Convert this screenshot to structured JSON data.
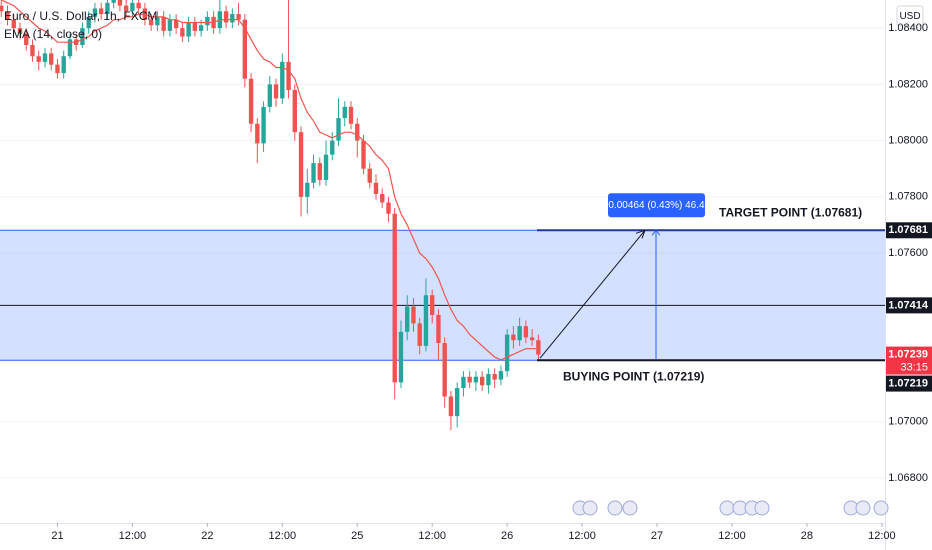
{
  "chart_data": {
    "type": "candlestick",
    "title": "Euro / U.S. Dollar, 1h, FXCM",
    "indicator": "EMA (14, close, 0)",
    "currency": "USD",
    "up_color": "#26a69a",
    "down_color": "#ef5350",
    "ema_color": "#f0554e",
    "x": [
      -9,
      -8,
      -7,
      -6,
      -5,
      -4,
      -3,
      -2,
      -1,
      0,
      1,
      2,
      3,
      4,
      5,
      6,
      7,
      8,
      9,
      10,
      11,
      12,
      13,
      14,
      15,
      16,
      17,
      18,
      19,
      20,
      21,
      22,
      23,
      24,
      25,
      26,
      27,
      28,
      29,
      30,
      31,
      32,
      33,
      34,
      35,
      36,
      37,
      38,
      39,
      40,
      41,
      42,
      43,
      44,
      45,
      46,
      47,
      48,
      49,
      50,
      51,
      52,
      53,
      54,
      55,
      56,
      57,
      58,
      59,
      60,
      61,
      62,
      63,
      64,
      65,
      66,
      67,
      68,
      69,
      70,
      71,
      72,
      73,
      74,
      75,
      76,
      77
    ],
    "open": [
      1.0848,
      1.0846,
      1.0843,
      1.084,
      1.0838,
      1.0834,
      1.083,
      1.0828,
      1.0831,
      1.0827,
      1.0824,
      1.083,
      1.0836,
      1.0834,
      1.084,
      1.0844,
      1.0847,
      1.0845,
      1.0849,
      1.085,
      1.0848,
      1.0846,
      1.0849,
      1.0847,
      1.0843,
      1.0841,
      1.0844,
      1.0839,
      1.0843,
      1.084,
      1.0837,
      1.0842,
      1.0839,
      1.0841,
      1.0844,
      1.084,
      1.0846,
      1.0842,
      1.0845,
      1.0843,
      1.0822,
      1.0806,
      1.0799,
      1.0812,
      1.082,
      1.0815,
      1.0828,
      1.0818,
      1.0803,
      1.078,
      1.0785,
      1.0792,
      1.0786,
      1.0795,
      1.08,
      1.0808,
      1.0812,
      1.0806,
      1.08,
      1.079,
      1.0785,
      1.0781,
      1.0778,
      1.0774,
      1.0714,
      1.0732,
      1.0741,
      1.0735,
      1.0727,
      1.0745,
      1.0738,
      1.0728,
      1.0709,
      1.0702,
      1.0712,
      1.0716,
      1.0714,
      1.0716,
      1.0713,
      1.0717,
      1.0715,
      1.0718,
      1.0731,
      1.0729,
      1.0734,
      1.073,
      1.0729
    ],
    "high": [
      1.085,
      1.0848,
      1.0845,
      1.0842,
      1.084,
      1.0836,
      1.0832,
      1.0833,
      1.0833,
      1.0829,
      1.0832,
      1.0838,
      1.0838,
      1.0842,
      1.0846,
      1.0849,
      1.0849,
      1.0851,
      1.0853,
      1.0852,
      1.085,
      1.0851,
      1.0851,
      1.0849,
      1.0845,
      1.0846,
      1.0846,
      1.0845,
      1.0845,
      1.0842,
      1.0844,
      1.0844,
      1.0843,
      1.0846,
      1.0846,
      1.085,
      1.0848,
      1.0847,
      1.0849,
      1.0845,
      1.0824,
      1.0808,
      1.0814,
      1.0823,
      1.0822,
      1.0831,
      1.086,
      1.082,
      1.0805,
      1.079,
      1.0795,
      1.0794,
      1.08,
      1.0803,
      1.0815,
      1.0814,
      1.0814,
      1.0808,
      1.0802,
      1.0792,
      1.0788,
      1.0783,
      1.078,
      1.0776,
      1.0736,
      1.0745,
      1.0744,
      1.0737,
      1.0751,
      1.0747,
      1.074,
      1.073,
      1.0711,
      1.0714,
      1.0718,
      1.0718,
      1.0718,
      1.0718,
      1.0719,
      1.0719,
      1.072,
      1.0733,
      1.0734,
      1.0737,
      1.0736,
      1.0733,
      1.0731
    ],
    "low": [
      1.0844,
      1.0841,
      1.0838,
      1.0836,
      1.0832,
      1.0828,
      1.0825,
      1.0826,
      1.0825,
      1.0822,
      1.0822,
      1.0829,
      1.0832,
      1.0833,
      1.0838,
      1.0842,
      1.0843,
      1.0843,
      1.0847,
      1.0846,
      1.0844,
      1.0844,
      1.0845,
      1.0841,
      1.0839,
      1.0839,
      1.0837,
      1.0837,
      1.0838,
      1.0835,
      1.0835,
      1.0837,
      1.0837,
      1.0839,
      1.0838,
      1.0838,
      1.084,
      1.084,
      1.0841,
      1.0819,
      1.0803,
      1.0792,
      1.0796,
      1.081,
      1.0812,
      1.0813,
      1.0815,
      1.08,
      1.0773,
      1.0774,
      1.0783,
      1.0784,
      1.0784,
      1.0793,
      1.0798,
      1.0805,
      1.0804,
      1.0794,
      1.0788,
      1.0783,
      1.0779,
      1.0776,
      1.0771,
      1.0708,
      1.0712,
      1.0729,
      1.0732,
      1.0724,
      1.0725,
      1.0735,
      1.0722,
      1.0705,
      1.0697,
      1.0698,
      1.0709,
      1.0712,
      1.0711,
      1.0711,
      1.071,
      1.0712,
      1.0713,
      1.0716,
      1.0726,
      1.0727,
      1.0728,
      1.0727,
      1.0722
    ],
    "close": [
      1.0846,
      1.0843,
      1.084,
      1.0838,
      1.0834,
      1.083,
      1.0828,
      1.0831,
      1.0827,
      1.0824,
      1.083,
      1.0836,
      1.0834,
      1.084,
      1.0844,
      1.0847,
      1.0845,
      1.0849,
      1.085,
      1.0848,
      1.0846,
      1.0849,
      1.0847,
      1.0843,
      1.0841,
      1.0844,
      1.0839,
      1.0843,
      1.084,
      1.0837,
      1.0842,
      1.0839,
      1.0841,
      1.0844,
      1.084,
      1.0846,
      1.0842,
      1.0845,
      1.0843,
      1.0822,
      1.0806,
      1.0799,
      1.0812,
      1.082,
      1.0815,
      1.0828,
      1.0818,
      1.0803,
      1.078,
      1.0785,
      1.0792,
      1.0786,
      1.0795,
      1.08,
      1.0808,
      1.0812,
      1.0806,
      1.08,
      1.079,
      1.0785,
      1.0781,
      1.0778,
      1.0774,
      1.0714,
      1.0732,
      1.0741,
      1.0735,
      1.0727,
      1.0745,
      1.0738,
      1.0728,
      1.0709,
      1.0702,
      1.0712,
      1.0716,
      1.0714,
      1.0716,
      1.0713,
      1.0717,
      1.0715,
      1.0718,
      1.0731,
      1.0729,
      1.0734,
      1.073,
      1.0729,
      1.07239
    ],
    "ema": [
      1.085,
      1.0849,
      1.0848,
      1.0846,
      1.0844,
      1.0842,
      1.084,
      1.0839,
      1.0837,
      1.0835,
      1.0835,
      1.0835,
      1.0835,
      1.0836,
      1.0837,
      1.0839,
      1.084,
      1.0841,
      1.0843,
      1.0843,
      1.0844,
      1.0844,
      1.0845,
      1.0845,
      1.0844,
      1.0844,
      1.0844,
      1.0843,
      1.0843,
      1.0842,
      1.0842,
      1.0842,
      1.0842,
      1.0842,
      1.0842,
      1.0843,
      1.0843,
      1.0843,
      1.0843,
      1.084,
      1.0836,
      1.0832,
      1.0829,
      1.0828,
      1.0826,
      1.0826,
      1.0825,
      1.0822,
      1.0815,
      1.081,
      1.0807,
      1.0803,
      1.0802,
      1.0801,
      1.0802,
      1.0803,
      1.0803,
      1.0802,
      1.08,
      1.0798,
      1.0795,
      1.0793,
      1.079,
      1.078,
      1.0774,
      1.077,
      1.0765,
      1.076,
      1.0758,
      1.0755,
      1.0751,
      1.0745,
      1.074,
      1.0736,
      1.0734,
      1.0731,
      1.0729,
      1.0727,
      1.0725,
      1.0723,
      1.0722,
      1.0723,
      1.0724,
      1.0725,
      1.0726,
      1.0726,
      1.0726
    ],
    "xlim": [
      -9.2,
      132.5
    ],
    "ylim": [
      1.0664,
      1.085
    ],
    "xticks": [
      {
        "value": 0,
        "label": "21"
      },
      {
        "value": 12,
        "label": "12:00"
      },
      {
        "value": 24,
        "label": "22"
      },
      {
        "value": 36,
        "label": "12:00"
      },
      {
        "value": 48,
        "label": "25"
      },
      {
        "value": 60,
        "label": "12:00"
      },
      {
        "value": 72,
        "label": "26"
      },
      {
        "value": 84,
        "label": "12:00"
      },
      {
        "value": 96,
        "label": "27"
      },
      {
        "value": 108,
        "label": "12:00"
      },
      {
        "value": 120,
        "label": "28"
      },
      {
        "value": 132,
        "label": "12:00"
      }
    ],
    "yticks": [
      {
        "value": 1.084,
        "label": "1.08400"
      },
      {
        "value": 1.082,
        "label": "1.08200"
      },
      {
        "value": 1.08,
        "label": "1.08000"
      },
      {
        "value": 1.078,
        "label": "1.07800"
      },
      {
        "value": 1.076,
        "label": "1.07600"
      },
      {
        "value": 1.07,
        "label": "1.07000"
      },
      {
        "value": 1.068,
        "label": "1.06800"
      }
    ],
    "target": {
      "value": 1.07681,
      "label": "TARGET POINT (1.07681)"
    },
    "middle": {
      "value": 1.07414
    },
    "buy": {
      "value": 1.07219,
      "label": "BUYING POINT (1.07219)"
    },
    "measure_label": "0.00464 (0.43%) 46.4",
    "last_price": 1.07239,
    "countdown": "33:15"
  }
}
